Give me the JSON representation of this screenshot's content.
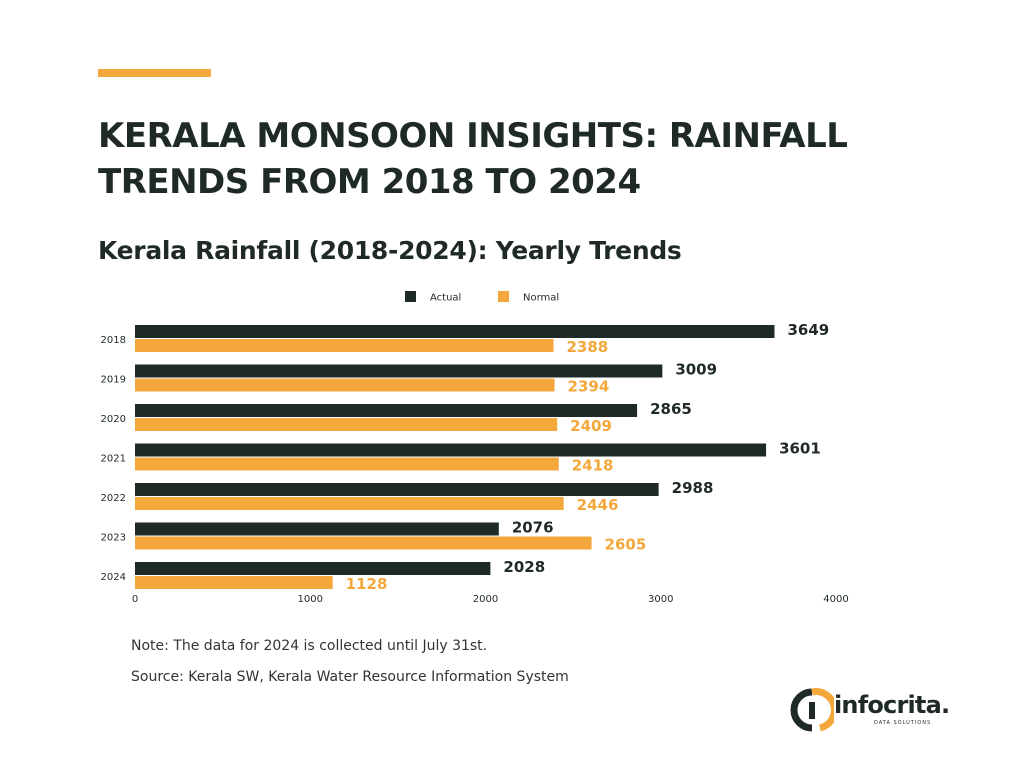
{
  "header": {
    "title": "KERALA MONSOON INSIGHTS: RAINFALL TRENDS FROM 2018 TO 2024"
  },
  "chart_data": {
    "type": "bar",
    "orientation": "horizontal",
    "title": "Kerala Rainfall (2018-2024): Yearly Trends",
    "categories": [
      "2018",
      "2019",
      "2020",
      "2021",
      "2022",
      "2023",
      "2024"
    ],
    "series": [
      {
        "name": "Actual",
        "color": "#1f2a28",
        "values": [
          3649,
          3009,
          2865,
          3601,
          2988,
          2076,
          2028
        ]
      },
      {
        "name": "Normal",
        "color": "#f4a83c",
        "values": [
          2388,
          2394,
          2409,
          2418,
          2446,
          2605,
          1128
        ]
      }
    ],
    "xlim": [
      0,
      4000
    ],
    "xticks": [
      0,
      1000,
      2000,
      3000,
      4000
    ],
    "grid": false,
    "legend": "top-center",
    "data_labels": true
  },
  "notes": {
    "note": "Note: The data for 2024 is collected until July 31st.",
    "source": "Source: Kerala SW, Kerala Water Resource Information System"
  },
  "logo": {
    "name": "infocrita.",
    "tagline": "DATA SOLUTIONS"
  }
}
